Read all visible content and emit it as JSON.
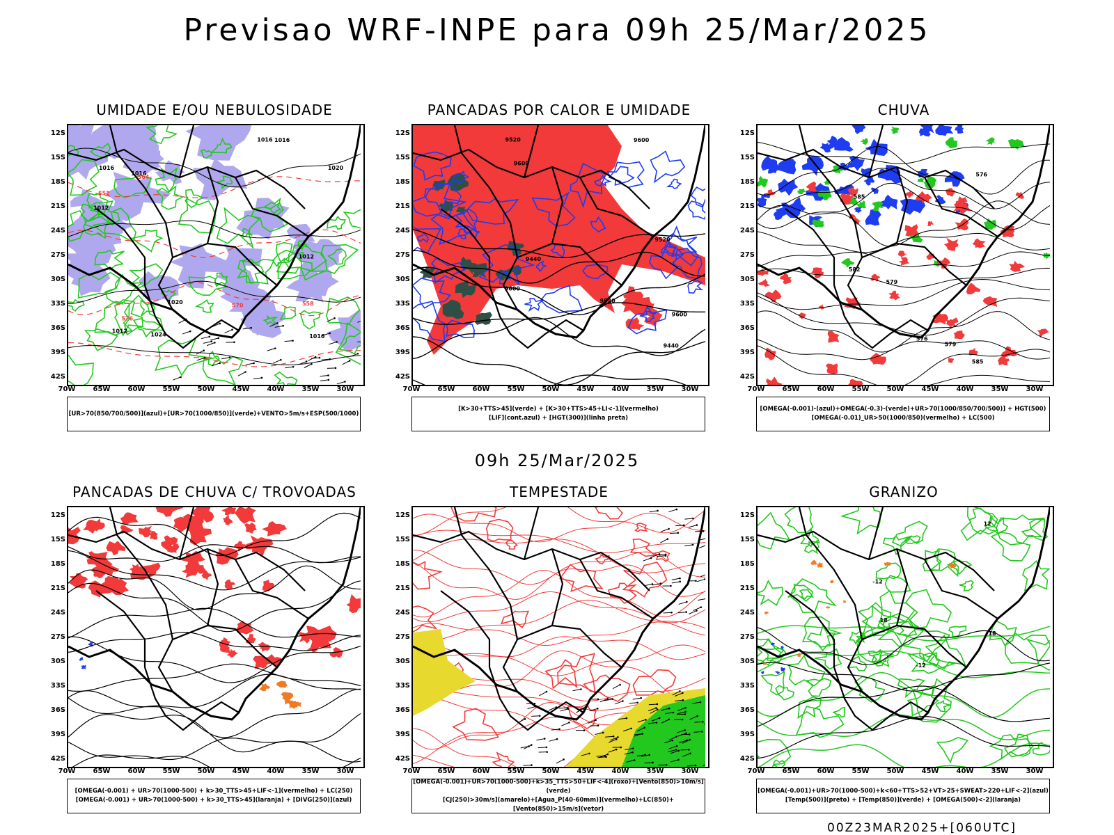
{
  "title": "Previsao WRF-INPE  para 09h 25/Mar/2025",
  "mid_title": "09h 25/Mar/2025",
  "footer": "00Z23MAR2025+[060UTC]",
  "axes": {
    "y_labels": [
      "12S",
      "15S",
      "18S",
      "21S",
      "24S",
      "27S",
      "30S",
      "33S",
      "36S",
      "39S",
      "42S"
    ],
    "x_labels": [
      "70W",
      "65W",
      "60W",
      "55W",
      "50W",
      "45W",
      "40W",
      "35W",
      "30W"
    ]
  },
  "panels": [
    {
      "title": "UMIDADE E/OU NEBULOSIDADE",
      "legend_lines": [
        "[UR>70(850/700/500)](azul)+[UR>70(1000/850)](verde)+VENTO>5m/s+ESP(500/1000)"
      ],
      "labels": [
        "1016",
        "1016",
        "1016",
        "1012",
        "1012",
        "1020",
        "1020",
        "1024",
        "1016",
        "1016",
        "1012",
        "570",
        "576",
        "564",
        "558",
        "552"
      ]
    },
    {
      "title": "PANCADAS POR CALOR E UMIDADE",
      "legend_lines": [
        "[K>30+TTS>45](verde) + [K>30+TTS>45+LI<-1](vermelho)",
        "[LIF](cont.azul) + [HGT(300)](linha preta)"
      ],
      "labels": [
        "9600",
        "9600",
        "9600",
        "9520",
        "9520",
        "9520",
        "9440",
        "9440",
        "9600"
      ]
    },
    {
      "title": "CHUVA",
      "legend_lines": [
        "[OMEGA(-0.001)-(azul)+OMEGA(-0.3)-(verde)+UR>70(1000/850/700/500)] + HGT(500)",
        "[OMEGA(-0.01)_UR>50(1000/850)(vermelho) + LC(500)"
      ],
      "labels": [
        "585",
        "585",
        "582",
        "579",
        "576",
        "579",
        "576"
      ]
    },
    {
      "title": "PANCADAS DE CHUVA C/ TROVOADAS",
      "legend_lines": [
        "[OMEGA(-0.001) + UR>70(1000-500) + k>30_TTS>45+LIF<-1](vermelho) + LC(250)",
        "[OMEGA(-0.001) + UR>70(1000-500) + k>30_TTS>45](laranja) + [DIVG(250)](azul)"
      ],
      "labels": []
    },
    {
      "title": "TEMPESTADE",
      "legend_lines": [
        "[OMEGA(-0.001)+UR>70(1000-500)+k>35_TTS>50+LIF<-4](roxo)+[Vento(850)>10m/s](verde)",
        "[CJ(250)>30m/s](amarelo)+[Agua_P(40-60mm)](vermelho)+LC(850)+[Vento(850)>15m/s](vetor)"
      ],
      "labels": []
    },
    {
      "title": "GRANIZO",
      "legend_lines": [
        "[OMEGA(-0.001)+UR>70(1000-500)+k<60+TTS>52+VT>25+SWEAT>220+LIF<-2](azul)",
        "[Temp(500)](preto) + [Temp(850)](verde) + [OMEGA(500)<-2](laranja)"
      ],
      "labels": [
        "-12",
        "-12",
        "12",
        "-18",
        "18"
      ]
    }
  ],
  "colors": {
    "red": "#f23a3a",
    "green": "#22c81e",
    "blue": "#1e3cf0",
    "lavender": "#b0a8ee",
    "yellow": "#e7d92e",
    "darkgreen": "#2f4f46",
    "orange": "#ef7b25"
  }
}
